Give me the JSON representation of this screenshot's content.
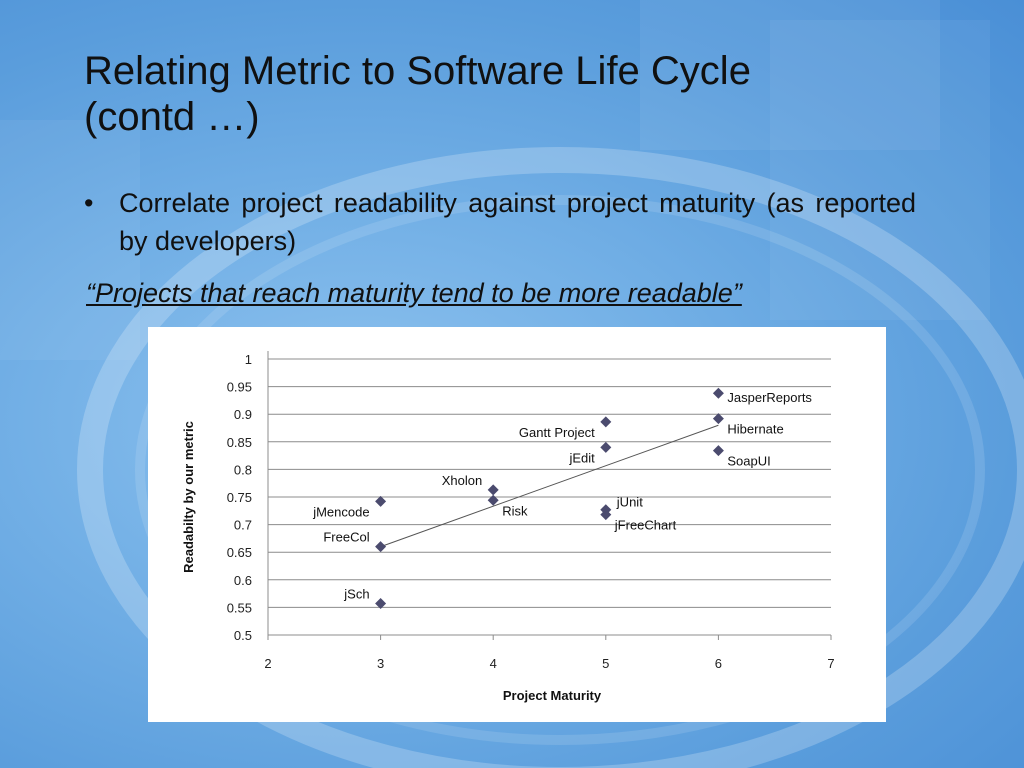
{
  "slide": {
    "title_line1": "Relating Metric to Software Life Cycle",
    "title_line2": "(contd …)",
    "bullet_mark": "•",
    "bullet_text": "Correlate project readability against project maturity (as reported by developers)",
    "quote": "“Projects that reach maturity tend to be more readable”"
  },
  "colors": {
    "marker": "#4b4b6e",
    "trendline": "#555555",
    "gridline": "#8c8c8c"
  },
  "chart_data": {
    "type": "scatter",
    "xlabel": "Project Maturity",
    "ylabel": "Readabilty by our metric",
    "xlim": [
      2,
      7
    ],
    "ylim": [
      0.5,
      1
    ],
    "x_ticks": [
      2,
      3,
      4,
      5,
      6,
      7
    ],
    "y_ticks": [
      0.5,
      0.55,
      0.6,
      0.65,
      0.7,
      0.75,
      0.8,
      0.85,
      0.9,
      0.95,
      1
    ],
    "grid": "horizontal",
    "legend": "none",
    "trendline": {
      "type": "linear",
      "x_start": 3,
      "y_start": 0.66,
      "x_end": 6,
      "y_end": 0.88
    },
    "points": [
      {
        "label": "jMencode",
        "x": 3,
        "y": 0.742,
        "label_pos": "left-below"
      },
      {
        "label": "FreeCol",
        "x": 3,
        "y": 0.66,
        "label_pos": "left-above"
      },
      {
        "label": "jSch",
        "x": 3,
        "y": 0.557,
        "label_pos": "left-above"
      },
      {
        "label": "Xholon",
        "x": 4,
        "y": 0.763,
        "label_pos": "left-above"
      },
      {
        "label": "Risk",
        "x": 4,
        "y": 0.744,
        "label_pos": "right-below"
      },
      {
        "label": "Gantt Project",
        "x": 5,
        "y": 0.886,
        "label_pos": "left-below"
      },
      {
        "label": "jEdit",
        "x": 5,
        "y": 0.84,
        "label_pos": "left-below"
      },
      {
        "label": "jUnit",
        "x": 5,
        "y": 0.727,
        "label_pos": "right-above"
      },
      {
        "label": "jFreeChart",
        "x": 5,
        "y": 0.718,
        "label_pos": "right-below"
      },
      {
        "label": "JasperReports",
        "x": 6,
        "y": 0.938,
        "label_pos": "right"
      },
      {
        "label": "Hibernate",
        "x": 6,
        "y": 0.892,
        "label_pos": "right-below"
      },
      {
        "label": "SoapUI",
        "x": 6,
        "y": 0.834,
        "label_pos": "right-below"
      }
    ]
  }
}
